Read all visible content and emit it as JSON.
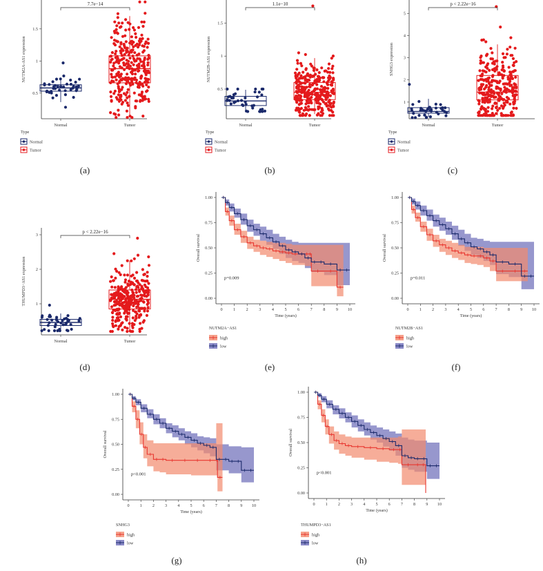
{
  "chart_data": [
    {
      "id": "a",
      "type": "box",
      "panel_label": "(a)",
      "ylabel": "NUTM2A-AS1 expression",
      "categories": [
        "Normal",
        "Tumor"
      ],
      "yticks": [
        0.5,
        1.0,
        1.5
      ],
      "ylim": [
        0.1,
        1.95
      ],
      "boxes": [
        {
          "category": "Normal",
          "q1": 0.53,
          "median": 0.58,
          "q3": 0.63,
          "wmin": 0.36,
          "wmax": 0.72,
          "min": 0.28,
          "max": 0.97,
          "n": 40,
          "color": "#1b2a6b"
        },
        {
          "category": "Tumor",
          "q1": 0.66,
          "median": 0.88,
          "q3": 1.08,
          "wmin": 0.13,
          "wmax": 1.7,
          "min": 0.12,
          "max": 1.92,
          "n": 320,
          "color": "#e41a1c"
        }
      ],
      "significance": "7.7e−14",
      "legend_title": "Type",
      "legend": [
        "Normal",
        "Tumor"
      ]
    },
    {
      "id": "b",
      "type": "box",
      "panel_label": "(b)",
      "ylabel": "NUTM2B-AS1 expression",
      "categories": [
        "Normal",
        "Tumor"
      ],
      "yticks": [
        0.5,
        1.0,
        1.5
      ],
      "ylim": [
        0.05,
        1.85
      ],
      "boxes": [
        {
          "category": "Normal",
          "q1": 0.25,
          "median": 0.32,
          "q3": 0.39,
          "wmin": 0.16,
          "wmax": 0.49,
          "min": 0.16,
          "max": 0.5,
          "n": 40,
          "color": "#1b2a6b"
        },
        {
          "category": "Tumor",
          "q1": 0.34,
          "median": 0.45,
          "q3": 0.6,
          "wmin": 0.12,
          "wmax": 0.97,
          "min": 0.1,
          "max": 1.76,
          "n": 320,
          "color": "#e41a1c"
        }
      ],
      "significance": "1.1e−10",
      "legend_title": "Type",
      "legend": [
        "Normal",
        "Tumor"
      ]
    },
    {
      "id": "c",
      "type": "box",
      "panel_label": "(c)",
      "ylabel": "SNHG3 expression",
      "categories": [
        "Normal",
        "Tumor"
      ],
      "yticks": [
        1,
        2,
        3,
        4,
        5
      ],
      "ylim": [
        0.25,
        5.6
      ],
      "boxes": [
        {
          "category": "Normal",
          "q1": 0.5,
          "median": 0.58,
          "q3": 0.75,
          "wmin": 0.32,
          "wmax": 1.15,
          "min": 0.3,
          "max": 1.8,
          "n": 40,
          "color": "#1b2a6b"
        },
        {
          "category": "Tumor",
          "q1": 1.1,
          "median": 1.45,
          "q3": 2.2,
          "wmin": 0.4,
          "wmax": 3.6,
          "min": 0.4,
          "max": 5.3,
          "n": 320,
          "color": "#e41a1c"
        }
      ],
      "significance": "p < 2.22e−16",
      "legend_title": "Type",
      "legend": [
        "Normal",
        "Tumor"
      ]
    },
    {
      "id": "d",
      "type": "box",
      "panel_label": "(d)",
      "ylabel": "THUMPD3−AS1 expression",
      "categories": [
        "Normal",
        "Tumor"
      ],
      "yticks": [
        1,
        2,
        3
      ],
      "ylim": [
        0.1,
        3.2
      ],
      "boxes": [
        {
          "category": "Normal",
          "q1": 0.37,
          "median": 0.46,
          "q3": 0.55,
          "wmin": 0.25,
          "wmax": 0.72,
          "min": 0.22,
          "max": 0.96,
          "n": 40,
          "color": "#1b2a6b"
        },
        {
          "category": "Tumor",
          "q1": 0.85,
          "median": 1.13,
          "q3": 1.4,
          "wmin": 0.2,
          "wmax": 2.25,
          "min": 0.2,
          "max": 2.9,
          "n": 320,
          "color": "#e41a1c"
        }
      ],
      "significance": "p < 2.22e−16"
    },
    {
      "id": "e",
      "type": "km",
      "panel_label": "(e)",
      "ylabel": "Overall survival",
      "xlabel": "Time (years)",
      "xticks": [
        0,
        1,
        2,
        3,
        4,
        5,
        6,
        7,
        8,
        9,
        10
      ],
      "yticks": [
        "0.00",
        "0.25",
        "0.50",
        "0.75",
        "1.00"
      ],
      "xlim": [
        0,
        10
      ],
      "ylim": [
        0,
        1
      ],
      "pvalue": "p=0.009",
      "legend_title": "NUTM2A−AS1",
      "legend": [
        "high",
        "low"
      ],
      "series": [
        {
          "name": "high",
          "color": "#e8352e",
          "fill": "#f28a6e",
          "x": [
            0,
            0.3,
            0.6,
            1,
            1.5,
            2,
            2.5,
            3,
            3.5,
            4,
            4.5,
            5,
            5.5,
            6,
            6.5,
            6.8,
            7,
            8,
            9,
            9.5
          ],
          "y": [
            1.0,
            0.86,
            0.77,
            0.68,
            0.61,
            0.55,
            0.52,
            0.5,
            0.49,
            0.47,
            0.46,
            0.45,
            0.44,
            0.44,
            0.44,
            0.44,
            0.27,
            0.27,
            0.11,
            0.11
          ],
          "lo": [
            1.0,
            0.82,
            0.72,
            0.63,
            0.55,
            0.49,
            0.46,
            0.43,
            0.41,
            0.39,
            0.37,
            0.35,
            0.33,
            0.33,
            0.32,
            0.32,
            0.12,
            0.12,
            0.02,
            0.02
          ],
          "hi": [
            1.0,
            0.9,
            0.82,
            0.74,
            0.67,
            0.61,
            0.58,
            0.57,
            0.56,
            0.55,
            0.55,
            0.54,
            0.53,
            0.53,
            0.53,
            0.53,
            0.53,
            0.53,
            0.53,
            0.53
          ]
        },
        {
          "name": "low",
          "color": "#1b2a6b",
          "fill": "#6b6bb8",
          "x": [
            0,
            0.3,
            0.6,
            1,
            1.5,
            2,
            2.5,
            3,
            3.5,
            4,
            4.5,
            5,
            5.5,
            6,
            6.5,
            7,
            7.5,
            8,
            9,
            9.5,
            10
          ],
          "y": [
            1.0,
            0.95,
            0.9,
            0.84,
            0.78,
            0.72,
            0.68,
            0.64,
            0.6,
            0.56,
            0.52,
            0.48,
            0.46,
            0.44,
            0.4,
            0.36,
            0.36,
            0.34,
            0.28,
            0.28,
            0.28
          ],
          "lo": [
            1.0,
            0.92,
            0.86,
            0.8,
            0.73,
            0.66,
            0.62,
            0.57,
            0.53,
            0.49,
            0.44,
            0.4,
            0.37,
            0.35,
            0.3,
            0.26,
            0.26,
            0.23,
            0.13,
            0.13,
            0.13
          ],
          "hi": [
            1.0,
            0.98,
            0.94,
            0.89,
            0.84,
            0.78,
            0.74,
            0.71,
            0.68,
            0.64,
            0.61,
            0.58,
            0.56,
            0.55,
            0.55,
            0.55,
            0.55,
            0.55,
            0.55,
            0.55,
            0.55
          ]
        }
      ]
    },
    {
      "id": "f",
      "type": "km",
      "panel_label": "(f)",
      "ylabel": "Overall survival",
      "xlabel": "Time (years)",
      "xticks": [
        0,
        1,
        2,
        3,
        4,
        5,
        6,
        7,
        8,
        9,
        10
      ],
      "yticks": [
        "0.00",
        "0.25",
        "0.50",
        "0.75",
        "1.00"
      ],
      "xlim": [
        0,
        10
      ],
      "ylim": [
        0,
        1
      ],
      "pvalue": "p=0.011",
      "legend_title": "NUTM2B−AS1",
      "legend": [
        "high",
        "low"
      ],
      "series": [
        {
          "name": "high",
          "color": "#e8352e",
          "fill": "#f28a6e",
          "x": [
            0,
            0.3,
            0.6,
            1,
            1.5,
            2,
            2.5,
            3,
            3.5,
            4,
            4.5,
            5,
            5.5,
            6,
            6.5,
            7,
            8,
            9,
            9.5
          ],
          "y": [
            1.0,
            0.88,
            0.8,
            0.71,
            0.63,
            0.57,
            0.53,
            0.5,
            0.47,
            0.45,
            0.43,
            0.42,
            0.42,
            0.4,
            0.37,
            0.27,
            0.27,
            0.27,
            0.27
          ],
          "lo": [
            1.0,
            0.84,
            0.76,
            0.66,
            0.57,
            0.51,
            0.46,
            0.43,
            0.4,
            0.38,
            0.35,
            0.34,
            0.33,
            0.31,
            0.27,
            0.17,
            0.17,
            0.17,
            0.17
          ],
          "hi": [
            1.0,
            0.92,
            0.85,
            0.76,
            0.69,
            0.63,
            0.59,
            0.57,
            0.55,
            0.53,
            0.51,
            0.51,
            0.51,
            0.5,
            0.5,
            0.5,
            0.5,
            0.5,
            0.5
          ]
        },
        {
          "name": "low",
          "color": "#1b2a6b",
          "fill": "#6b6bb8",
          "x": [
            0,
            0.3,
            0.6,
            1,
            1.5,
            2,
            2.5,
            3,
            3.5,
            4,
            4.5,
            5,
            5.5,
            6,
            6.5,
            7,
            8,
            9,
            9.5,
            10
          ],
          "y": [
            1.0,
            0.96,
            0.92,
            0.87,
            0.82,
            0.77,
            0.73,
            0.69,
            0.64,
            0.59,
            0.55,
            0.51,
            0.49,
            0.46,
            0.43,
            0.36,
            0.34,
            0.22,
            0.22,
            0.22
          ],
          "lo": [
            1.0,
            0.93,
            0.88,
            0.82,
            0.77,
            0.71,
            0.67,
            0.63,
            0.58,
            0.52,
            0.47,
            0.43,
            0.4,
            0.37,
            0.33,
            0.24,
            0.21,
            0.09,
            0.09,
            0.09
          ],
          "hi": [
            1.0,
            0.99,
            0.96,
            0.92,
            0.88,
            0.83,
            0.8,
            0.76,
            0.72,
            0.68,
            0.64,
            0.6,
            0.59,
            0.57,
            0.56,
            0.56,
            0.56,
            0.56,
            0.56,
            0.56
          ]
        }
      ]
    },
    {
      "id": "g",
      "type": "km",
      "panel_label": "(g)",
      "ylabel": "Overall survival",
      "xlabel": "Time (years)",
      "xticks": [
        0,
        1,
        2,
        3,
        4,
        5,
        6,
        7,
        8,
        9,
        10
      ],
      "yticks": [
        "0.00",
        "0.25",
        "0.50",
        "0.75",
        "1.00"
      ],
      "xlim": [
        0,
        10
      ],
      "ylim": [
        0,
        1
      ],
      "pvalue": "p<0.001",
      "legend_title": "SNHG3",
      "legend": [
        "high",
        "low"
      ],
      "series": [
        {
          "name": "high",
          "color": "#e8352e",
          "fill": "#f28a6e",
          "x": [
            0,
            0.3,
            0.6,
            0.9,
            1.2,
            1.5,
            2,
            2.5,
            3,
            4,
            5,
            6,
            7,
            7.1,
            7.5
          ],
          "y": [
            1.0,
            0.88,
            0.75,
            0.6,
            0.47,
            0.4,
            0.35,
            0.35,
            0.34,
            0.34,
            0.34,
            0.34,
            0.34,
            0.17,
            0.17
          ],
          "lo": [
            1.0,
            0.82,
            0.66,
            0.5,
            0.36,
            0.28,
            0.23,
            0.22,
            0.2,
            0.2,
            0.19,
            0.19,
            0.19,
            0.03,
            0.03
          ],
          "hi": [
            1.0,
            0.93,
            0.84,
            0.72,
            0.6,
            0.54,
            0.51,
            0.51,
            0.51,
            0.51,
            0.51,
            0.51,
            0.71,
            0.71,
            0.71
          ]
        },
        {
          "name": "low",
          "color": "#1b2a6b",
          "fill": "#6b6bb8",
          "x": [
            0,
            0.3,
            0.6,
            1,
            1.5,
            2,
            2.5,
            3,
            3.5,
            4,
            4.5,
            5,
            5.5,
            6,
            6.5,
            7,
            7.5,
            8,
            8.5,
            9,
            9.5,
            10
          ],
          "y": [
            1.0,
            0.96,
            0.92,
            0.86,
            0.8,
            0.75,
            0.71,
            0.66,
            0.63,
            0.6,
            0.57,
            0.54,
            0.51,
            0.49,
            0.47,
            0.35,
            0.35,
            0.33,
            0.33,
            0.24,
            0.24,
            0.24
          ],
          "lo": [
            1.0,
            0.94,
            0.89,
            0.82,
            0.76,
            0.7,
            0.66,
            0.61,
            0.57,
            0.54,
            0.5,
            0.47,
            0.44,
            0.41,
            0.38,
            0.24,
            0.24,
            0.21,
            0.21,
            0.12,
            0.12,
            0.12
          ],
          "hi": [
            1.0,
            0.98,
            0.95,
            0.9,
            0.85,
            0.8,
            0.76,
            0.71,
            0.69,
            0.66,
            0.63,
            0.61,
            0.58,
            0.57,
            0.56,
            0.5,
            0.5,
            0.48,
            0.48,
            0.47,
            0.47,
            0.47
          ]
        }
      ]
    },
    {
      "id": "h",
      "type": "km",
      "panel_label": "(h)",
      "ylabel": "Overall survival",
      "xlabel": "Time (years)",
      "xticks": [
        0,
        1,
        2,
        3,
        4,
        5,
        6,
        7,
        8,
        9,
        10
      ],
      "yticks": [
        "0.00",
        "0.25",
        "0.50",
        "0.75",
        "1.00"
      ],
      "xlim": [
        0,
        10
      ],
      "ylim": [
        0,
        1
      ],
      "pvalue": "p<0.001",
      "legend_title": "THUMPD3−AS1",
      "legend": [
        "high",
        "low"
      ],
      "series": [
        {
          "name": "high",
          "color": "#e8352e",
          "fill": "#f28a6e",
          "x": [
            0,
            0.3,
            0.6,
            0.9,
            1.2,
            1.6,
            2,
            2.5,
            3,
            4,
            5,
            6,
            6.7,
            7,
            8,
            8.5,
            8.9
          ],
          "y": [
            1.0,
            0.88,
            0.77,
            0.66,
            0.58,
            0.52,
            0.49,
            0.47,
            0.46,
            0.45,
            0.44,
            0.43,
            0.43,
            0.28,
            0.28,
            0.28,
            0.0
          ],
          "lo": [
            1.0,
            0.83,
            0.7,
            0.58,
            0.49,
            0.43,
            0.39,
            0.37,
            0.35,
            0.33,
            0.31,
            0.3,
            0.29,
            0.08,
            0.08,
            0.08,
            0.0
          ],
          "hi": [
            1.0,
            0.92,
            0.83,
            0.73,
            0.66,
            0.61,
            0.58,
            0.56,
            0.55,
            0.55,
            0.55,
            0.55,
            0.56,
            0.63,
            0.63,
            0.63,
            0.63
          ]
        },
        {
          "name": "low",
          "color": "#1b2a6b",
          "fill": "#6b6bb8",
          "x": [
            0,
            0.3,
            0.6,
            1,
            1.5,
            2,
            2.5,
            3,
            3.5,
            4,
            4.5,
            5,
            5.5,
            6,
            6.5,
            7,
            7.5,
            8,
            8.5,
            9,
            9.5,
            10
          ],
          "y": [
            1.0,
            0.97,
            0.93,
            0.88,
            0.83,
            0.79,
            0.75,
            0.71,
            0.67,
            0.63,
            0.6,
            0.57,
            0.54,
            0.51,
            0.47,
            0.37,
            0.35,
            0.34,
            0.34,
            0.27,
            0.27,
            0.27
          ],
          "lo": [
            1.0,
            0.95,
            0.9,
            0.84,
            0.78,
            0.74,
            0.7,
            0.65,
            0.61,
            0.57,
            0.53,
            0.5,
            0.46,
            0.42,
            0.37,
            0.25,
            0.23,
            0.21,
            0.21,
            0.14,
            0.14,
            0.14
          ],
          "hi": [
            1.0,
            0.99,
            0.96,
            0.92,
            0.87,
            0.84,
            0.8,
            0.77,
            0.73,
            0.7,
            0.67,
            0.65,
            0.63,
            0.61,
            0.59,
            0.55,
            0.53,
            0.52,
            0.52,
            0.5,
            0.5,
            0.5
          ]
        }
      ]
    }
  ]
}
